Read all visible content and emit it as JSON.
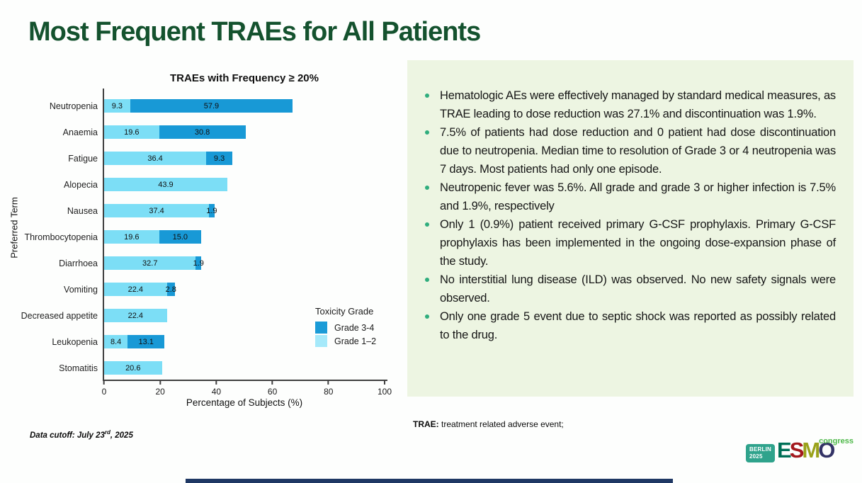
{
  "slide": {
    "title": "Most Frequent TRAEs for All Patients",
    "title_color": "#14522E",
    "panel_bg": "#EDF5E2",
    "bullet_dot_color": "#2FAD7D"
  },
  "chart_data": {
    "type": "bar",
    "orientation": "horizontal",
    "stacked": true,
    "title": "TRAEs with Frequency ≥ 20%",
    "xlabel": "Percentage of Subjects (%)",
    "ylabel": "Preferred Term",
    "xlim": [
      0,
      100
    ],
    "xticks": [
      0,
      20,
      40,
      60,
      80,
      100
    ],
    "grid": false,
    "categories": [
      "Neutropenia",
      "Anaemia",
      "Fatigue",
      "Alopecia",
      "Nausea",
      "Thrombocytopenia",
      "Diarrhoea",
      "Vomiting",
      "Decreased appetite",
      "Leukopenia",
      "Stomatitis"
    ],
    "series": [
      {
        "name": "Grade 1–2",
        "color": "#7CDEF6",
        "values": [
          9.3,
          19.6,
          36.4,
          43.9,
          37.4,
          19.6,
          32.7,
          22.4,
          22.4,
          8.4,
          20.6
        ]
      },
      {
        "name": "Grade 3-4",
        "color": "#1899D6",
        "values": [
          57.9,
          30.8,
          9.3,
          0,
          1.9,
          15.0,
          1.9,
          2.8,
          0,
          13.1,
          0
        ]
      }
    ],
    "legend": {
      "title": "Toxicity Grade",
      "position": "inside-right",
      "entries": [
        {
          "label": "Grade 3-4",
          "color": "#1A9BD7"
        },
        {
          "label": "Grade 1–2",
          "color": "#A5E9FA"
        }
      ]
    }
  },
  "bullets": [
    "Hematologic AEs were effectively managed by standard medical measures, as TRAE leading to dose reduction was 27.1% and discontinuation was 1.9%.",
    "7.5% of patients had dose reduction and 0 patient had dose discontinuation due to neutropenia. Median time to resolution of Grade 3 or 4 neutropenia was 7 days. Most patients had only one episode.",
    "Neutropenic fever was 5.6%. All grade and grade 3 or higher infection is 7.5% and 1.9%, respectively",
    "Only 1 (0.9%) patient received primary G-CSF prophylaxis. Primary G-CSF prophylaxis has been implemented in the ongoing dose-expansion phase of the study.",
    "No interstitial lung disease (ILD) was observed. No new safety signals were observed.",
    "Only one grade 5 event due to septic shock was reported as possibly related to the drug."
  ],
  "footnotes": {
    "data_cutoff_prefix": "Data cutoff: July 23",
    "data_cutoff_sup": "rd",
    "data_cutoff_suffix": ", 2025",
    "trae_bold": "TRAE:",
    "trae_rest": " treatment related adverse event;"
  },
  "logo": {
    "berlin_line1": "BERLIN",
    "berlin_line2": "2025",
    "letters": [
      {
        "ch": "E",
        "color": "#007057"
      },
      {
        "ch": "S",
        "color": "#A3191E"
      },
      {
        "ch": "M",
        "color": "#9AA21B"
      },
      {
        "ch": "O",
        "color": "#333366"
      }
    ],
    "congress": "congress"
  }
}
